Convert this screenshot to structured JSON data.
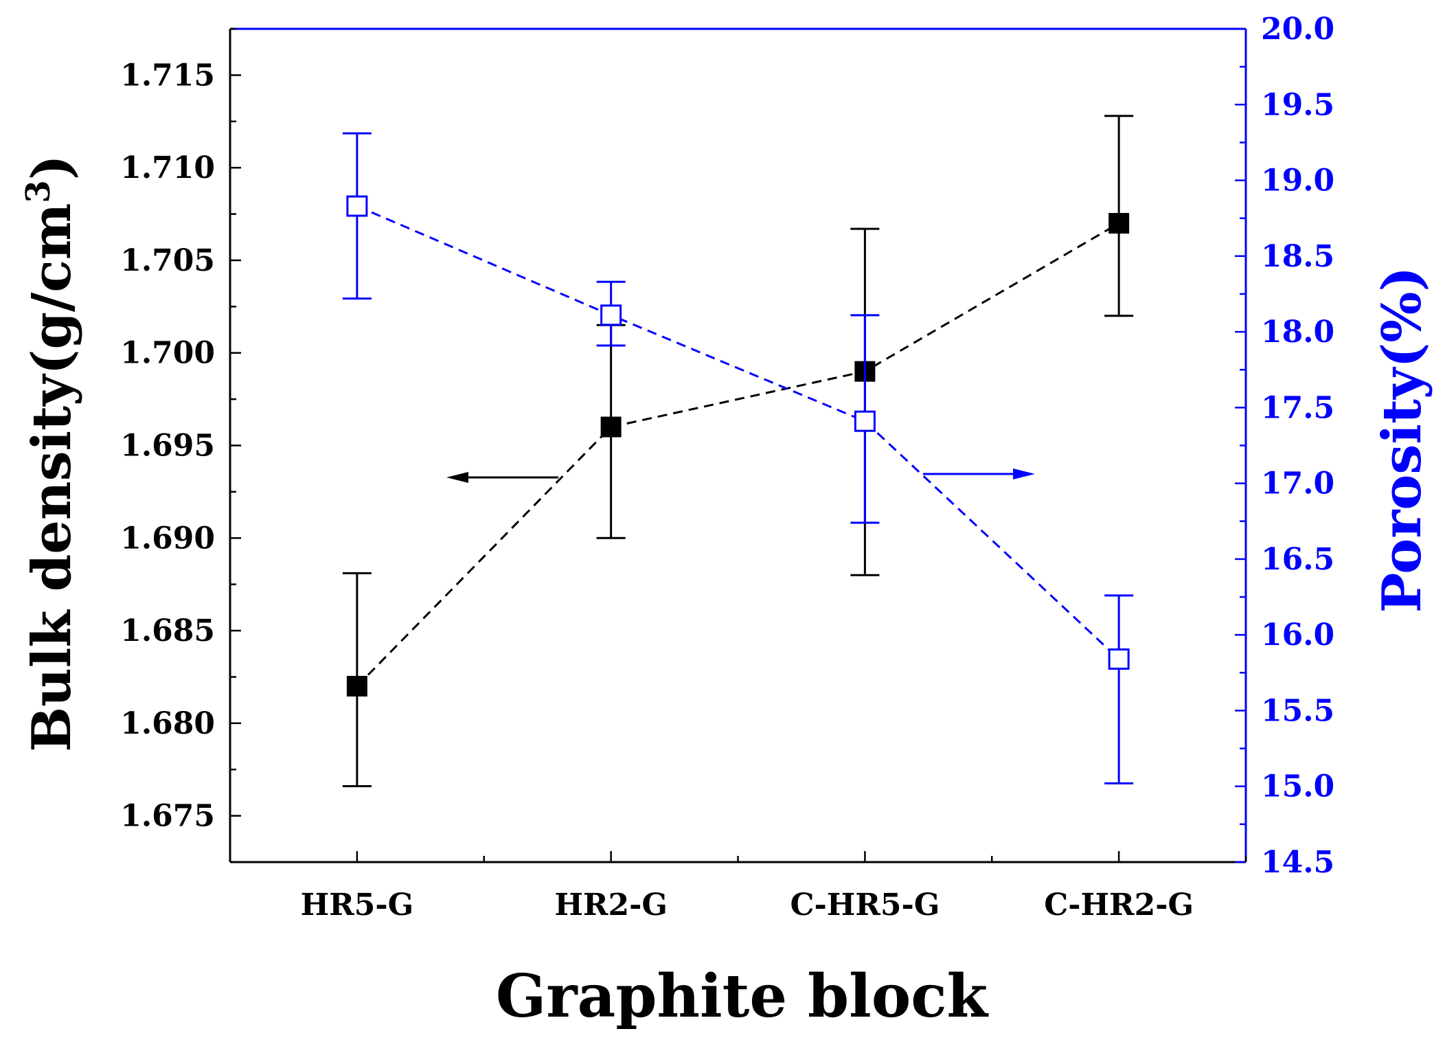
{
  "chart_data": {
    "type": "line",
    "categories": [
      "HR5-G",
      "HR2-G",
      "C-HR5-G",
      "C-HR2-G"
    ],
    "xlabel": "Graphite block",
    "ylabel_left": {
      "text": "Bulk density(g/cm",
      "superscript": "3",
      "close": ")"
    },
    "ylabel_right": "Porosity(%)",
    "ylim_left": [
      1.6725,
      1.7175
    ],
    "ylim_right": [
      14.5,
      20.0
    ],
    "yticks_left": [
      "1.675",
      "1.680",
      "1.685",
      "1.690",
      "1.695",
      "1.700",
      "1.705",
      "1.710",
      "1.715"
    ],
    "yticks_right": [
      "14.5",
      "15.0",
      "15.5",
      "16.0",
      "16.5",
      "17.0",
      "17.5",
      "18.0",
      "18.5",
      "19.0",
      "19.5",
      "20.0"
    ],
    "grid": false,
    "series": [
      {
        "axis": "left",
        "marker": "filled-square",
        "line_style": "dashed",
        "color": "#000000",
        "values": [
          1.682,
          1.696,
          1.699,
          1.707
        ],
        "err_low": [
          1.6766,
          1.69,
          1.688,
          1.702
        ],
        "err_high": [
          1.6881,
          1.7015,
          1.7067,
          1.7128
        ]
      },
      {
        "axis": "right",
        "marker": "open-square",
        "line_style": "dashed",
        "color": "#0000ff",
        "values": [
          18.83,
          18.11,
          17.41,
          15.84
        ],
        "err_low": [
          18.22,
          17.91,
          16.74,
          15.02
        ],
        "err_high": [
          19.31,
          18.33,
          18.11,
          16.26
        ]
      }
    ],
    "annotations": [
      {
        "type": "arrow",
        "direction": "left",
        "series_axis": "left",
        "color": "#000000"
      },
      {
        "type": "arrow",
        "direction": "right",
        "series_axis": "right",
        "color": "#0000ff"
      }
    ]
  }
}
